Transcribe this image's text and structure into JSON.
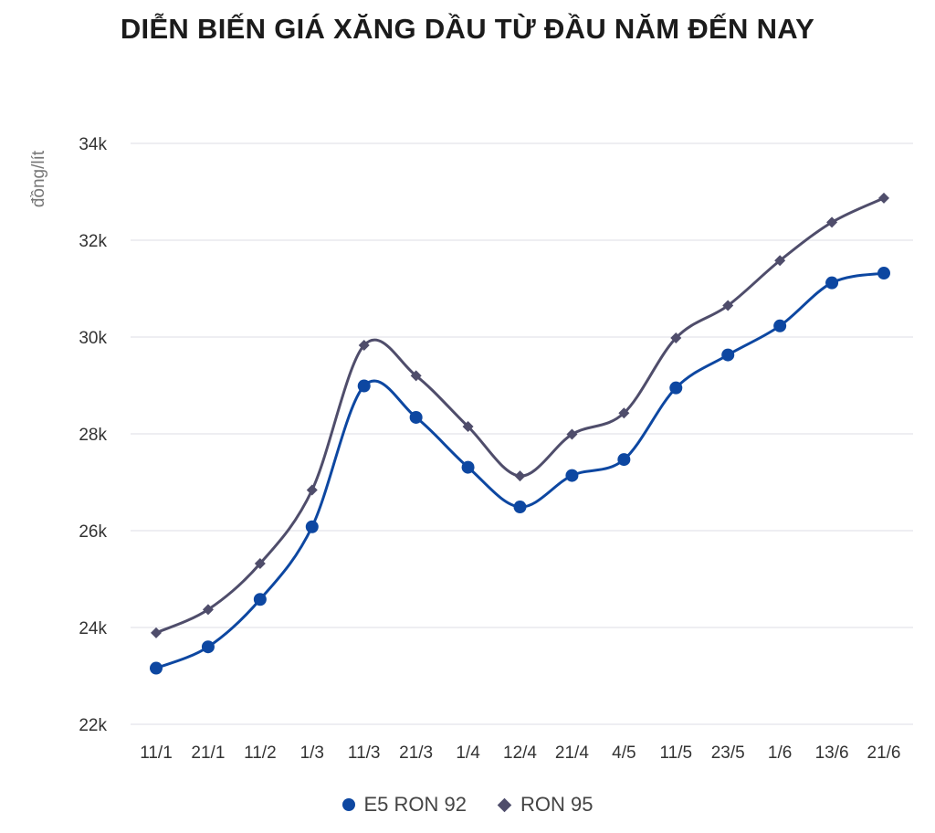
{
  "chart_data": {
    "type": "line",
    "title": "DIỄN BIẾN GIÁ XĂNG DẦU TỪ ĐẦU NĂM ĐẾN NAY",
    "ylabel": "đồng/lít",
    "xlabel": "",
    "categories": [
      "11/1",
      "21/1",
      "11/2",
      "1/3",
      "11/3",
      "21/3",
      "1/4",
      "12/4",
      "21/4",
      "4/5",
      "11/5",
      "23/5",
      "1/6",
      "13/6",
      "21/6"
    ],
    "ylim": [
      22000,
      34000
    ],
    "yticks": [
      22000,
      24000,
      26000,
      28000,
      30000,
      32000,
      34000
    ],
    "ytick_labels": [
      "22k",
      "24k",
      "26k",
      "28k",
      "30k",
      "32k",
      "34k"
    ],
    "grid": true,
    "legend_position": "bottom",
    "series": [
      {
        "name": "E5 RON 92",
        "marker": "circle",
        "color": "#0d47a1",
        "values": [
          23160,
          23600,
          24580,
          26080,
          28990,
          28340,
          27310,
          26490,
          27140,
          27470,
          28950,
          29630,
          30230,
          31120,
          31320
        ]
      },
      {
        "name": "RON 95",
        "marker": "diamond",
        "color": "#4f4d6b",
        "values": [
          23890,
          24370,
          25320,
          26840,
          29830,
          29200,
          28150,
          27130,
          27990,
          28430,
          29980,
          30650,
          31580,
          32370,
          32870
        ]
      }
    ]
  }
}
